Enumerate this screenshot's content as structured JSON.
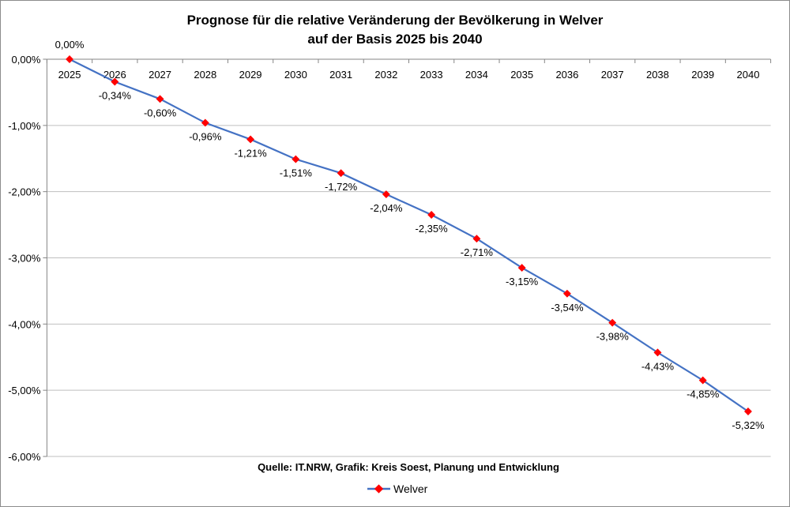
{
  "chart_data": {
    "type": "line",
    "title_line1": "Prognose für die relative Veränderung der Bevölkerung in Welver",
    "title_line2": "auf der Basis 2025 bis 2040",
    "source": "Quelle: IT.NRW, Grafik: Kreis Soest, Planung und Entwicklung",
    "categories": [
      "2025",
      "2026",
      "2027",
      "2028",
      "2029",
      "2030",
      "2031",
      "2032",
      "2033",
      "2034",
      "2035",
      "2036",
      "2037",
      "2038",
      "2039",
      "2040"
    ],
    "series": [
      {
        "name": "Welver",
        "values": [
          0.0,
          -0.34,
          -0.6,
          -0.96,
          -1.21,
          -1.51,
          -1.72,
          -2.04,
          -2.35,
          -2.71,
          -3.15,
          -3.54,
          -3.98,
          -4.43,
          -4.85,
          -5.32
        ],
        "data_labels": [
          "0,00%",
          "-0,34%",
          "-0,60%",
          "-0,96%",
          "-1,21%",
          "-1,51%",
          "-1,72%",
          "-2,04%",
          "-2,35%",
          "-2,71%",
          "-3,15%",
          "-3,54%",
          "-3,98%",
          "-4,43%",
          "-4,85%",
          "-5,32%"
        ]
      }
    ],
    "ylim": [
      -6,
      0
    ],
    "yticks": [
      0,
      -1,
      -2,
      -3,
      -4,
      -5,
      -6
    ],
    "ytick_labels": [
      "0,00%",
      "-1,00%",
      "-2,00%",
      "-3,00%",
      "-4,00%",
      "-5,00%",
      "-6,00%"
    ],
    "grid": true,
    "legend_position": "bottom",
    "colors": {
      "line": "#4472c4",
      "marker": "#ff0000",
      "grid": "#bfbfbf"
    }
  }
}
